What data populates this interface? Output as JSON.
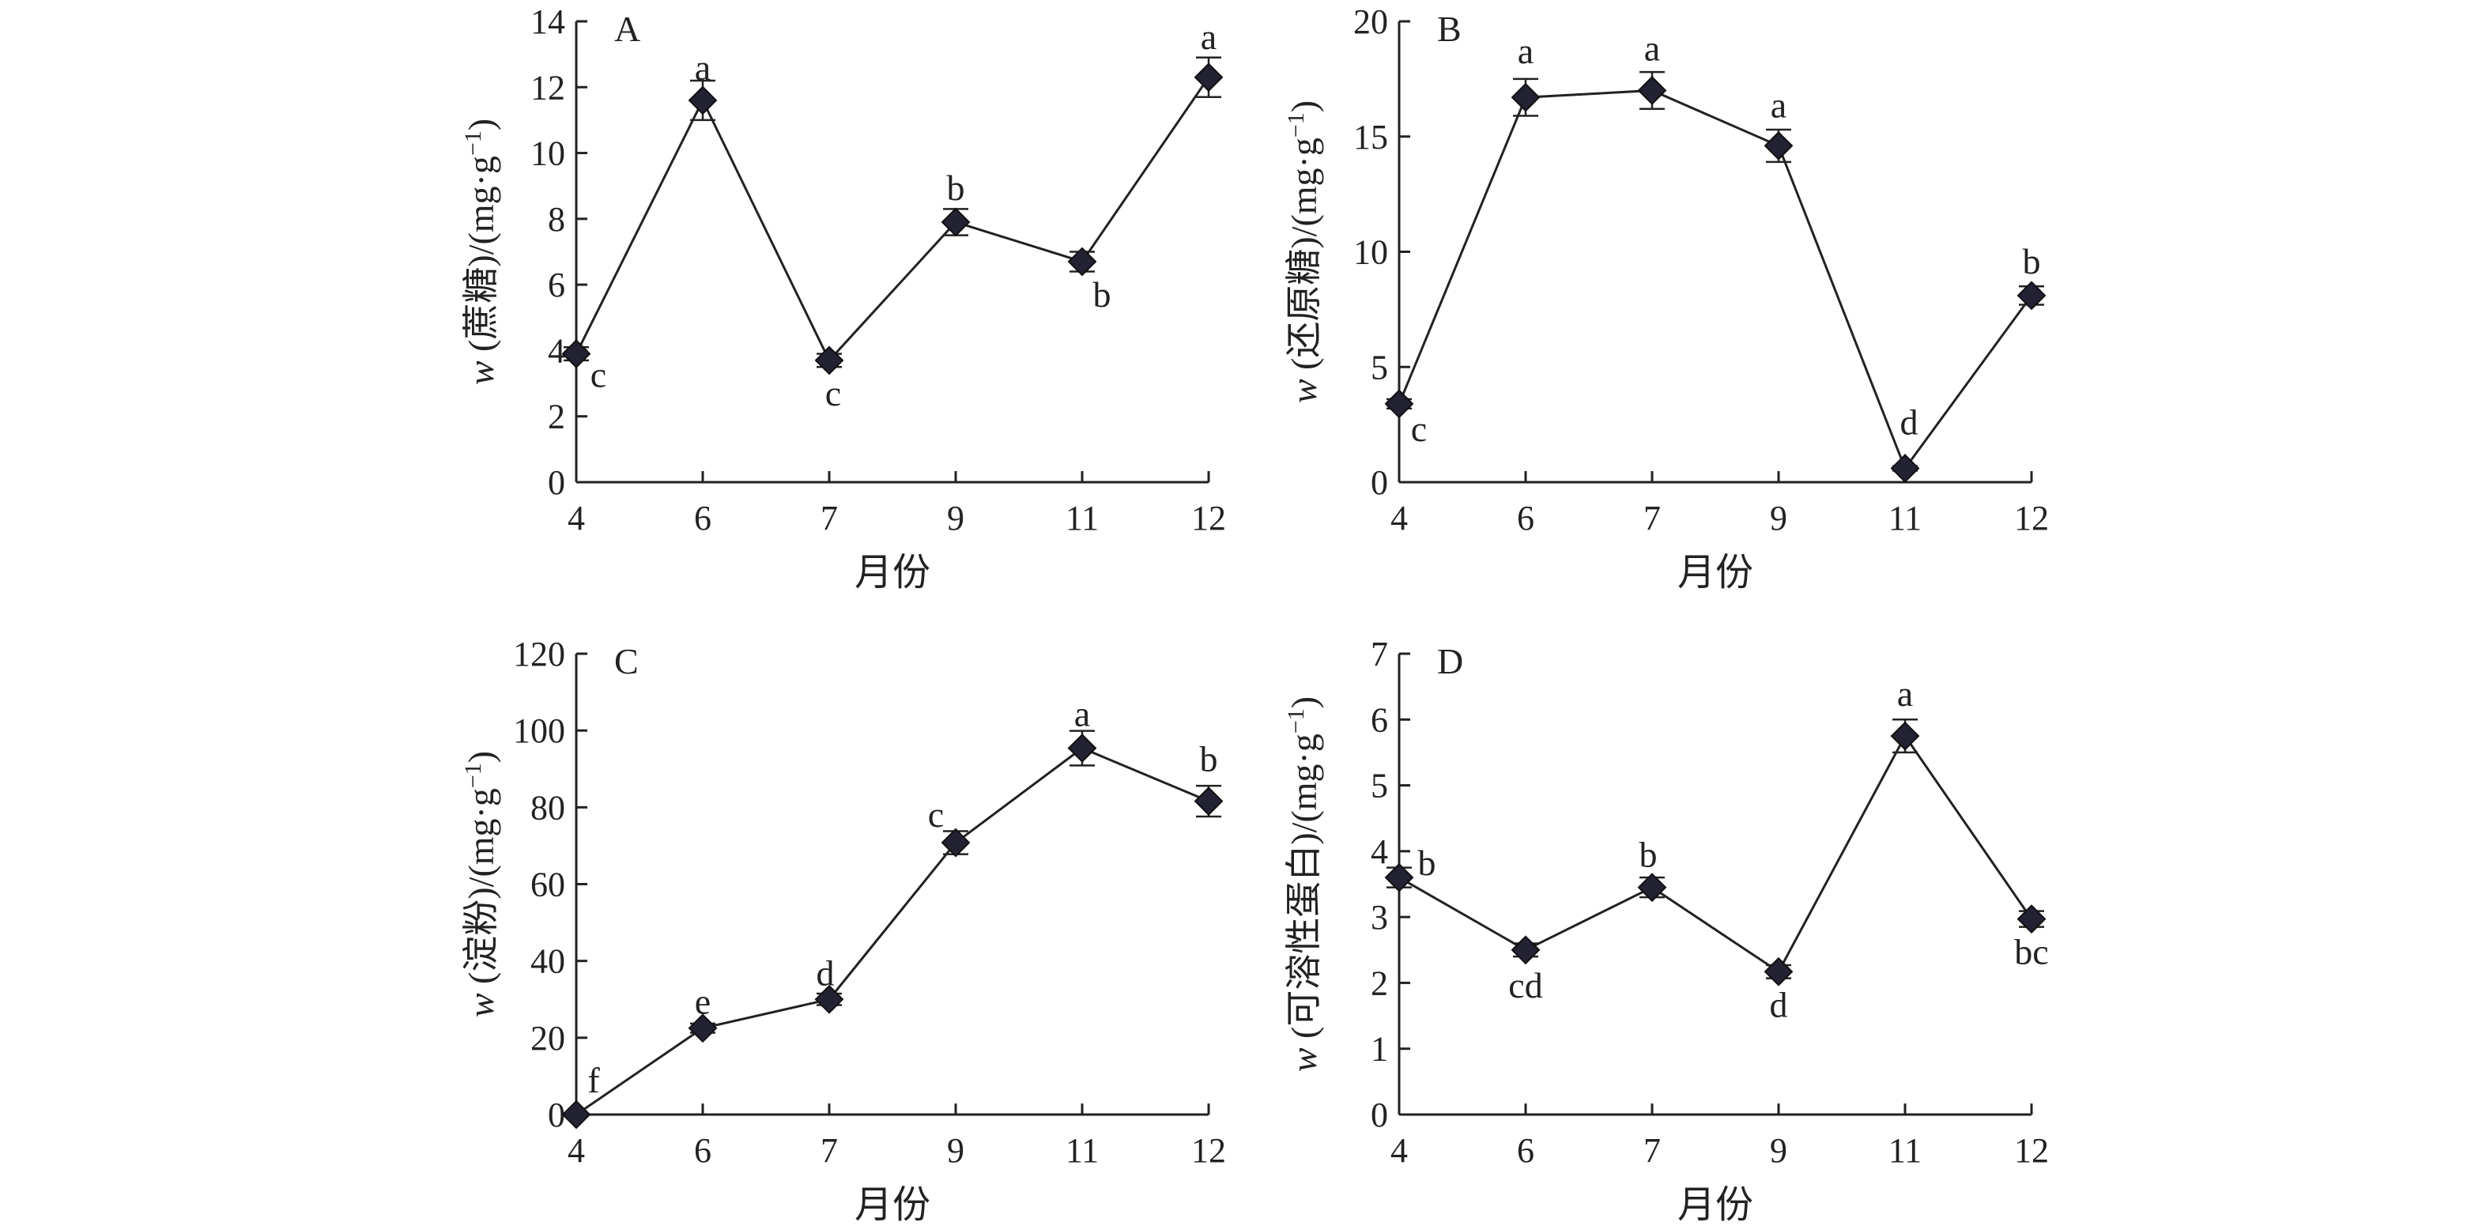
{
  "chart_data": [
    {
      "panel": "A",
      "type": "line",
      "categories": [
        "4",
        "6",
        "7",
        "9",
        "11",
        "12"
      ],
      "values": [
        3.9,
        11.6,
        3.7,
        7.9,
        6.7,
        12.3
      ],
      "errors": [
        0.2,
        0.6,
        0.2,
        0.4,
        0.3,
        0.6
      ],
      "letters": [
        "c",
        "a",
        "c",
        "b",
        "b",
        "a"
      ],
      "xlabel": "月份",
      "ylabel_var": "w",
      "ylabel_text": " (蔗糖)/(mg·g",
      "ylabel_sup": "−1",
      "ylabel_close": ")",
      "yticks": [
        "0",
        "2",
        "4",
        "6",
        "8",
        "10",
        "12",
        "14"
      ],
      "ylim": [
        0,
        14
      ]
    },
    {
      "panel": "B",
      "type": "line",
      "categories": [
        "4",
        "6",
        "7",
        "9",
        "11",
        "12"
      ],
      "values": [
        3.4,
        16.7,
        17.0,
        14.6,
        0.6,
        8.1
      ],
      "errors": [
        0.2,
        0.8,
        0.8,
        0.7,
        0.1,
        0.4
      ],
      "letters": [
        "c",
        "a",
        "a",
        "a",
        "d",
        "b"
      ],
      "xlabel": "月份",
      "ylabel_var": "w",
      "ylabel_text": " (还原糖)/(mg·g",
      "ylabel_sup": "−1",
      "ylabel_close": ")",
      "yticks": [
        "0",
        "5",
        "10",
        "15",
        "20"
      ],
      "ylim": [
        0,
        20
      ]
    },
    {
      "panel": "C",
      "type": "line",
      "categories": [
        "4",
        "6",
        "7",
        "9",
        "11",
        "12"
      ],
      "values": [
        0,
        22.5,
        30.0,
        70.8,
        95.4,
        81.6
      ],
      "errors": [
        0.3,
        1.2,
        1.5,
        3.0,
        4.5,
        4.0
      ],
      "letters": [
        "f",
        "e",
        "d",
        "c",
        "a",
        "b"
      ],
      "xlabel": "月份",
      "ylabel_var": "w",
      "ylabel_text": " (淀粉)/(mg·g",
      "ylabel_sup": "−1",
      "ylabel_close": ")",
      "yticks": [
        "0",
        "20",
        "40",
        "60",
        "80",
        "100",
        "120"
      ],
      "ylim": [
        0,
        120
      ]
    },
    {
      "panel": "D",
      "type": "line",
      "categories": [
        "4",
        "6",
        "7",
        "9",
        "11",
        "12"
      ],
      "values": [
        3.6,
        2.5,
        3.45,
        2.17,
        5.75,
        2.97
      ],
      "errors": [
        0.15,
        0.1,
        0.15,
        0.1,
        0.25,
        0.12
      ],
      "letters": [
        "b",
        "cd",
        "b",
        "d",
        "a",
        "bc"
      ],
      "xlabel": "月份",
      "ylabel_var": "w",
      "ylabel_text": " (可溶性蛋白)/(mg·g",
      "ylabel_sup": "−1",
      "ylabel_close": ")",
      "yticks": [
        "0",
        "1",
        "2",
        "3",
        "4",
        "5",
        "6",
        "7"
      ],
      "ylim": [
        0,
        7
      ]
    }
  ]
}
